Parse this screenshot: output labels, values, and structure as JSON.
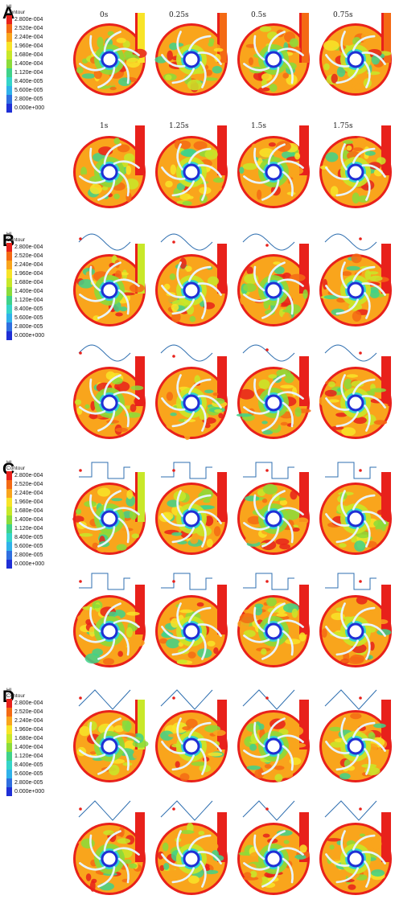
{
  "panels": [
    {
      "letter": "A",
      "legend_title": [
        "HI",
        "Contour"
      ]
    },
    {
      "letter": "B",
      "legend_title": [
        "HI",
        "Contour"
      ]
    },
    {
      "letter": "C",
      "legend_title": [
        "HI",
        "Contour"
      ]
    },
    {
      "letter": "D",
      "legend_title": [
        "HI",
        "Contour"
      ]
    }
  ],
  "legend_values": [
    "2.800e-004",
    "2.520e-004",
    "2.240e-004",
    "1.960e-004",
    "1.680e-004",
    "1.400e-004",
    "1.120e-004",
    "8.400e-005",
    "5.600e-005",
    "2.800e-005",
    "0.000e+000"
  ],
  "legend_colors": [
    "#e8211b",
    "#f46a14",
    "#f9a51c",
    "#f8e428",
    "#c8e829",
    "#8bdc3a",
    "#3fd28a",
    "#35d5c9",
    "#2fb2ea",
    "#2f6fe0",
    "#1f2fd6"
  ],
  "time_labels": [
    "0s",
    "0.25s",
    "0.5s",
    "0.75s",
    "1s",
    "1.25s",
    "1.5s",
    "1.75s"
  ],
  "waveforms": {
    "B": "sine",
    "C": "square",
    "D": "triangle"
  }
}
